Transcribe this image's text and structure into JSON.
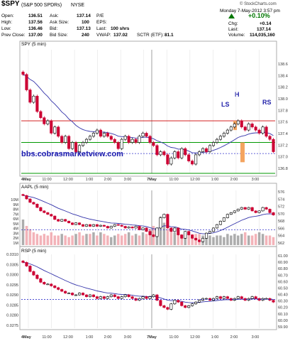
{
  "header": {
    "symbol": "$SPY",
    "name": "(S&P 500 SPDRs)",
    "exchange": "NYSE",
    "copyright": "© StockCharts.com",
    "date": "Monday 7-May-2012 3:57 pm",
    "change_pct": "+0.10%",
    "quote": {
      "open_label": "Open:",
      "open": "136.51",
      "high_label": "High:",
      "high": "137.56",
      "low_label": "Low:",
      "low": "136.46",
      "prev_label": "Prev Close:",
      "prev": "137.00",
      "ask_label": "Ask:",
      "ask": "137.14",
      "ask_size_label": "Ask Size:",
      "ask_size": "100",
      "bid_label": "Bid:",
      "bid": "137.13",
      "bid_size_label": "Bid Size:",
      "bid_size": "240",
      "pe_label": "P/E",
      "eps_label": "EPS:",
      "last_label": "Last:",
      "last_shares": "100 shrs",
      "vwap_label": "VWAP:",
      "vwap": "137.02",
      "sctr_label": "SCTR (ETF):",
      "sctr": "81.1",
      "chg_label": "Chg:",
      "chg": "+0.14",
      "last2_label": "Last:",
      "last2": "137.14",
      "volume_label": "Volume:",
      "volume": "114,035,160"
    }
  },
  "colors": {
    "up": "#000000",
    "down": "#cc0033",
    "ma": "#3333aa",
    "resistance": "#cc0000",
    "support": "#009900",
    "dashed": "#3333cc",
    "pattern": "#f4a460",
    "watermark": "#1a1aaa",
    "volume_up": "#999999",
    "volume_down": "#f0a0a8"
  },
  "chart_data": [
    {
      "type": "candlestick",
      "title": "SPY (5 min)",
      "ylim": [
        136.7,
        138.7
      ],
      "yticks": [
        "138.6",
        "138.4",
        "138.2",
        "138.0",
        "137.8",
        "137.6",
        "137.4",
        "137.2",
        "137.0",
        "136.8"
      ],
      "x_labels": [
        "4May",
        "11:00",
        "12:00",
        "1:00",
        "2:00",
        "3:00",
        "7May",
        "11:00",
        "12:00",
        "1:00",
        "2:00",
        "3:00"
      ],
      "annotations": [
        "LS",
        "H",
        "RS"
      ],
      "watermark": "bbs.cobrasmarketview.com",
      "levels": {
        "resistance": 137.55,
        "neck": 137.2,
        "dashed": 137.02,
        "support": 136.7
      },
      "close": [
        138.3,
        138.05,
        137.85,
        137.95,
        137.7,
        137.6,
        137.5,
        137.55,
        137.35,
        137.45,
        137.3,
        137.2,
        137.3,
        137.1,
        137.2,
        137.05,
        137.15,
        137.2,
        137.25,
        137.3,
        137.35,
        137.4,
        137.3,
        137.35,
        137.3,
        137.25,
        137.2,
        137.1,
        137.25,
        137.3,
        137.2,
        137.25,
        137.2,
        137.3,
        137.35,
        137.3,
        137.2,
        137.15,
        137.0,
        137.05,
        137.0,
        136.85,
        136.95,
        137.05,
        136.95,
        137.1,
        137.0,
        136.9,
        136.85,
        137.0,
        137.05,
        137.1,
        137.05,
        137.15,
        137.2,
        137.25,
        137.3,
        137.35,
        137.4,
        137.45,
        137.5,
        137.55,
        137.45,
        137.4,
        137.5,
        137.45,
        137.4,
        137.35,
        137.45,
        137.3,
        137.25,
        137.05
      ]
    },
    {
      "type": "candlestick",
      "title": "AAPL (5 min)",
      "ylim": [
        561,
        577
      ],
      "yticks": [
        "576",
        "574",
        "572",
        "570",
        "568",
        "566",
        "564",
        "562"
      ],
      "volume_ticks": [
        "10M",
        "9M",
        "8M",
        "7M",
        "6M",
        "5M",
        "4M",
        "3M",
        "2M",
        "1M"
      ],
      "levels": {
        "dashed": 565.5
      },
      "close": [
        575.5,
        574.5,
        573.5,
        573,
        572,
        571,
        570.5,
        570,
        569.5,
        568.5,
        568,
        568.5,
        568,
        567.5,
        567,
        567.5,
        567,
        566.5,
        567,
        566.5,
        567,
        566.5,
        566.8,
        566.5,
        566,
        566.5,
        567,
        566.8,
        566.5,
        566,
        566.3,
        566,
        566.5,
        565.5,
        566,
        565,
        564,
        563.5,
        566,
        569,
        570,
        566,
        565,
        566,
        564,
        563,
        565,
        564,
        563,
        562.5,
        562,
        563,
        564.5,
        565,
        566,
        567,
        568,
        569,
        570,
        570.5,
        571,
        571.5,
        572,
        571.5,
        572,
        571,
        570.5,
        571,
        572,
        571.5,
        570.5,
        569.8
      ],
      "volume": [
        8,
        6,
        5,
        4,
        3.5,
        3,
        3.5,
        3,
        4,
        3,
        3,
        3.5,
        3,
        2.5,
        3,
        3.5,
        4,
        3,
        3.5,
        3.5,
        4,
        3,
        4,
        3.5,
        3,
        2.5,
        3,
        3.5,
        3,
        3.5,
        4,
        3,
        3.5,
        3,
        4,
        3.5,
        5,
        6,
        4,
        9,
        7,
        5,
        5,
        4,
        4,
        3,
        4,
        3.5,
        3,
        3.5,
        3.5,
        3,
        3.5,
        3,
        2.5,
        3,
        3,
        2.5,
        3.5,
        3,
        3.5,
        3,
        3.5,
        4,
        3,
        3,
        3.5,
        4,
        3.5,
        3,
        3,
        2.5
      ]
    },
    {
      "type": "candlestick",
      "title": "RSP (5 min)",
      "ylim": [
        0.02715,
        0.03125
      ],
      "yticks": [
        "0.0310",
        "0.0305",
        "0.0300",
        "0.0295",
        "0.0290",
        "0.0285",
        "0.0280",
        "0.0275"
      ],
      "right_ticks": [
        "61.00",
        "60.90",
        "60.80",
        "60.70",
        "60.60",
        "60.50",
        "60.40",
        "60.30",
        "60.20",
        "60.10",
        "60.00",
        "59.90"
      ],
      "levels": {
        "dashed": 0.02875
      },
      "close": [
        0.0308,
        0.0306,
        0.0303,
        0.0301,
        0.0299,
        0.0297,
        0.0296,
        0.0296,
        0.0295,
        0.0294,
        0.0293,
        0.0292,
        0.0291,
        0.0291,
        0.029,
        0.029,
        0.0291,
        0.029,
        0.0289,
        0.029,
        0.0289,
        0.0288,
        0.0289,
        0.0288,
        0.0289,
        0.029,
        0.0289,
        0.0288,
        0.0289,
        0.029,
        0.0289,
        0.0288,
        0.0287,
        0.0288,
        0.0289,
        0.0288,
        0.0289,
        0.029,
        0.0287,
        0.0284,
        0.0283,
        0.0282,
        0.0285,
        0.0287,
        0.0286,
        0.0284,
        0.0283,
        0.0284,
        0.0285,
        0.0286,
        0.0287,
        0.0288,
        0.0288,
        0.0287,
        0.0288,
        0.0289,
        0.0288,
        0.0289,
        0.0288,
        0.0287,
        0.0288,
        0.0289,
        0.0288,
        0.0287,
        0.0288,
        0.0289,
        0.0288,
        0.0287,
        0.0288,
        0.0288,
        0.0287,
        0.0286
      ]
    }
  ]
}
